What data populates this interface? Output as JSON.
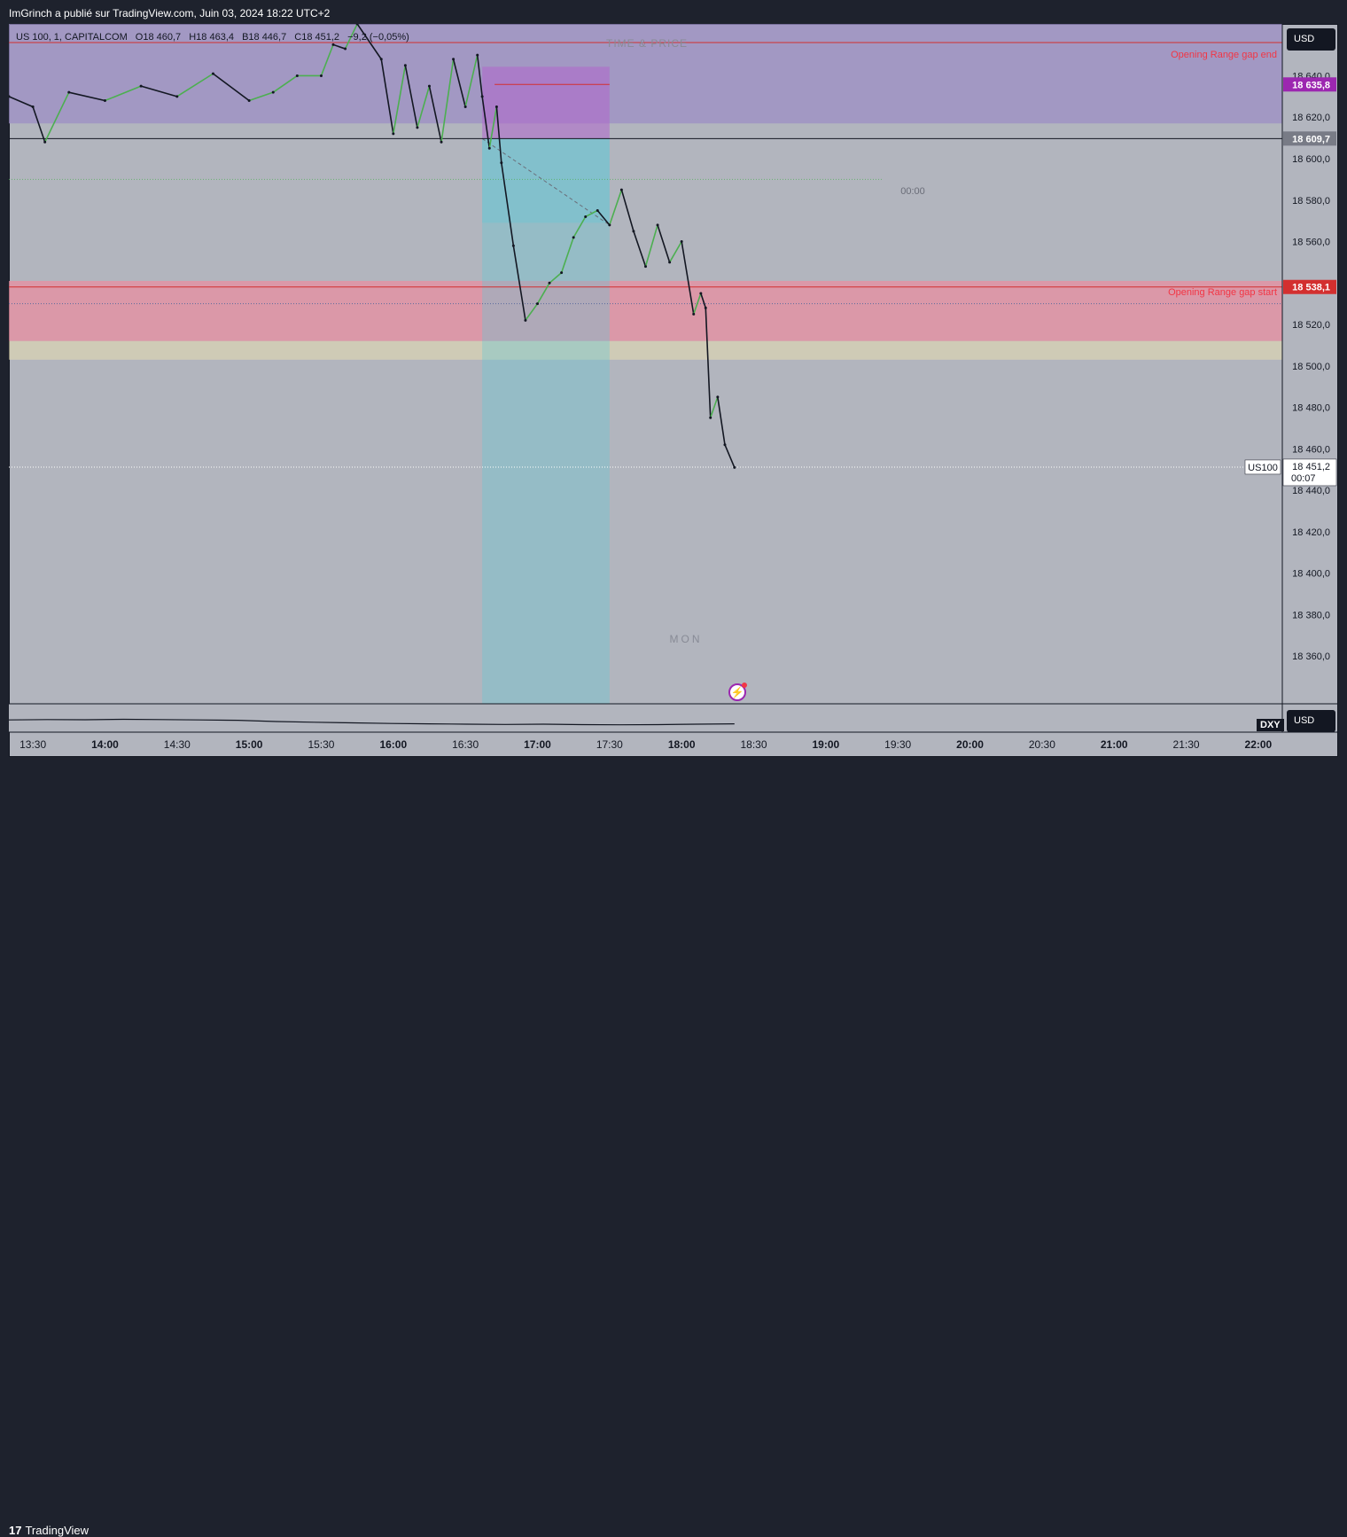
{
  "header": {
    "publisher_line": "ImGrinch a publié sur TradingView.com, Juin 03, 2024 18:22 UTC+2"
  },
  "legend": {
    "symbol": "US 100, 1, CAPITALCOM",
    "open": "O18 460,7",
    "high": "H18 463,4",
    "low": "B18 446,7",
    "close": "C18 451,2",
    "change": "−9,2 (−0,05%)"
  },
  "watermark": {
    "top": "TIME & PRICE",
    "bottom": "MON"
  },
  "labels": {
    "gap_end": "Opening Range gap end",
    "gap_start": "Opening Range gap start",
    "midnight": "00:00"
  },
  "price_axis": {
    "currency": "USD",
    "ticks": [
      "18 640,0",
      "18 620,0",
      "18 600,0",
      "18 580,0",
      "18 560,0",
      "18 540,0",
      "18 520,0",
      "18 500,0",
      "18 480,0",
      "18 460,0",
      "18 440,0",
      "18 420,0",
      "18 400,0",
      "18 380,0",
      "18 360,0"
    ],
    "badges": {
      "purple": {
        "text": "18 635,8",
        "color": "#9c27b0"
      },
      "gray": {
        "text": "18 609,7",
        "color": "#787b86"
      },
      "red": {
        "text": "18 538,1",
        "color": "#d32f2f"
      },
      "current": {
        "text": "18 451,2",
        "countdown": "00:07",
        "tag": "US100"
      }
    }
  },
  "sub_pane": {
    "symbol": "DXY",
    "currency": "USD"
  },
  "time_axis": {
    "ticks": [
      "13:30",
      "14:00",
      "14:30",
      "15:00",
      "15:30",
      "16:00",
      "16:30",
      "17:00",
      "17:30",
      "18:00",
      "18:30",
      "19:00",
      "19:30",
      "20:00",
      "20:30",
      "21:00",
      "21:30",
      "22:00"
    ]
  },
  "footer": {
    "brand": "TradingView",
    "logo_glyph": "17"
  },
  "colors": {
    "up": "#4caf50",
    "down": "#131722",
    "chart_bg": "#b2b5be",
    "gap_zone": "#e88fa0",
    "upper_zone": "#9c8fc4",
    "target_box": "#5ec8d8",
    "stop_box": "#b166cc"
  },
  "chart_data": {
    "type": "line",
    "title": "US 100, 1, CAPITALCOM",
    "xlabel": "",
    "ylabel": "",
    "x_range": [
      "13:20",
      "22:10"
    ],
    "ylim": [
      18337,
      18665
    ],
    "series": [
      {
        "name": "US100",
        "x": [
          "13:20",
          "13:30",
          "13:35",
          "13:45",
          "14:00",
          "14:15",
          "14:30",
          "14:45",
          "15:00",
          "15:10",
          "15:20",
          "15:30",
          "15:35",
          "15:40",
          "15:45",
          "15:55",
          "16:00",
          "16:05",
          "16:10",
          "16:15",
          "16:20",
          "16:25",
          "16:30",
          "16:35",
          "16:37",
          "16:40",
          "16:43",
          "16:45",
          "16:50",
          "16:55",
          "17:00",
          "17:05",
          "17:10",
          "17:15",
          "17:20",
          "17:25",
          "17:30",
          "17:35",
          "17:40",
          "17:45",
          "17:50",
          "17:55",
          "18:00",
          "18:05",
          "18:08",
          "18:10",
          "18:12",
          "18:15",
          "18:18",
          "18:22"
        ],
        "values": [
          18630,
          18625,
          18608,
          18632,
          18628,
          18635,
          18630,
          18641,
          18628,
          18632,
          18640,
          18640,
          18655,
          18653,
          18665,
          18648,
          18612,
          18645,
          18615,
          18635,
          18608,
          18648,
          18625,
          18650,
          18630,
          18605,
          18625,
          18598,
          18558,
          18522,
          18530,
          18540,
          18545,
          18562,
          18572,
          18575,
          18568,
          18585,
          18565,
          18548,
          18568,
          18550,
          18560,
          18525,
          18535,
          18528,
          18475,
          18485,
          18462,
          18451
        ]
      }
    ],
    "levels": [
      {
        "name": "Opening Range gap end",
        "value": 18656
      },
      {
        "name": "Opening Range gap start",
        "value": 18538.1
      },
      {
        "value": 18635.8
      },
      {
        "value": 18609.7
      },
      {
        "value": 18451.2
      }
    ],
    "zones": [
      {
        "from": 18617,
        "to": 18665
      },
      {
        "from": 18512,
        "to": 18541
      },
      {
        "from": 18503,
        "to": 18512
      }
    ],
    "position_tool": {
      "start": "16:37",
      "end": "17:30",
      "entry": 18609.7,
      "stop": 18635.8,
      "target": 18337
    },
    "dxy_series": [
      0.4,
      0.42,
      0.41,
      0.43,
      0.42,
      0.4,
      0.38,
      0.32,
      0.28,
      0.25,
      0.22,
      0.2,
      0.18,
      0.17,
      0.18,
      0.16,
      0.15,
      0.16,
      0.18,
      0.2
    ]
  }
}
